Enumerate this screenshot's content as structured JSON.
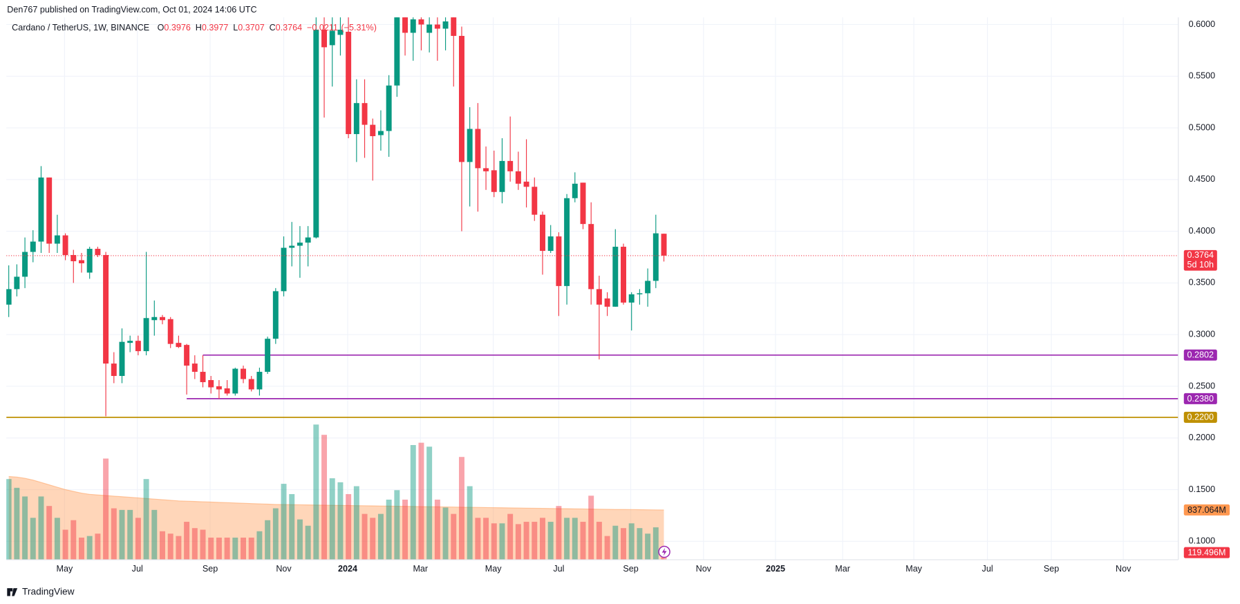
{
  "header": "Den767 published on TradingView.com, Oct 01, 2024 14:06 UTC",
  "footer": "TradingView",
  "chart_data": {
    "type": "candlestick",
    "title": "Cardano / TetherUS, 1W, BINANCE",
    "ohlc_letters": [
      "O",
      "H",
      "L",
      "C"
    ],
    "change": {
      "value": -0.0211,
      "label": "−0.0211"
    },
    "change_pct": {
      "value": -5.31,
      "label": "(−5.31%)"
    },
    "x": [
      0,
      1,
      2,
      3,
      4,
      5,
      6,
      7,
      8,
      9,
      10,
      11,
      12,
      13,
      14,
      15,
      16,
      17,
      18,
      19,
      20,
      21,
      22,
      23,
      24,
      25,
      26,
      27,
      28,
      29,
      30,
      31,
      32,
      33,
      34,
      35,
      36,
      37,
      38,
      39,
      40,
      41,
      42,
      43,
      44,
      45,
      46,
      47,
      48,
      49,
      50,
      51,
      52,
      53,
      54,
      55,
      56,
      57,
      58,
      59,
      60,
      61,
      62,
      63,
      64,
      65,
      66,
      67,
      68,
      69,
      70,
      71,
      72,
      73,
      74,
      75,
      76,
      77,
      78,
      79,
      80,
      81
    ],
    "open": [
      0.329,
      0.344,
      0.356,
      0.38,
      0.39,
      0.452,
      0.388,
      0.396,
      0.377,
      0.372,
      0.36,
      0.383,
      0.377,
      0.272,
      0.26,
      0.292,
      0.294,
      0.284,
      0.314,
      0.317,
      0.315,
      0.292,
      0.29,
      0.272,
      0.264,
      0.256,
      0.25,
      0.248,
      0.243,
      0.267,
      0.257,
      0.247,
      0.264,
      0.296,
      0.342,
      0.384,
      0.386,
      0.389,
      0.394,
      0.595,
      0.58,
      0.59,
      0.593,
      0.494,
      0.524,
      0.503,
      0.493,
      0.497,
      0.541,
      0.61,
      0.592,
      0.605,
      0.592,
      0.6,
      0.596,
      0.607,
      0.589,
      0.467,
      0.499,
      0.461,
      0.459,
      0.438,
      0.468,
      0.458,
      0.448,
      0.443,
      0.416,
      0.381,
      0.395,
      0.347,
      0.432,
      0.447,
      0.407,
      0.344,
      0.335,
      0.327,
      0.385,
      0.331,
      0.339,
      0.34,
      0.352,
      0.3976
    ],
    "high": [
      0.367,
      0.368,
      0.394,
      0.401,
      0.463,
      0.452,
      0.416,
      0.398,
      0.382,
      0.379,
      0.385,
      0.385,
      0.38,
      0.283,
      0.306,
      0.299,
      0.299,
      0.38,
      0.333,
      0.319,
      0.317,
      0.299,
      0.291,
      0.28,
      0.28,
      0.26,
      0.256,
      0.256,
      0.268,
      0.27,
      0.26,
      0.268,
      0.298,
      0.345,
      0.395,
      0.409,
      0.405,
      0.405,
      0.607,
      0.61,
      0.61,
      0.61,
      0.61,
      0.547,
      0.547,
      0.509,
      0.517,
      0.551,
      0.62,
      0.62,
      0.62,
      0.62,
      0.615,
      0.62,
      0.615,
      0.62,
      0.598,
      0.52,
      0.524,
      0.482,
      0.478,
      0.49,
      0.511,
      0.477,
      0.489,
      0.452,
      0.419,
      0.406,
      0.399,
      0.436,
      0.457,
      0.447,
      0.428,
      0.357,
      0.341,
      0.402,
      0.388,
      0.341,
      0.344,
      0.364,
      0.416,
      0.3977
    ],
    "low": [
      0.317,
      0.337,
      0.345,
      0.37,
      0.379,
      0.379,
      0.379,
      0.372,
      0.35,
      0.36,
      0.354,
      0.375,
      0.221,
      0.253,
      0.253,
      0.283,
      0.28,
      0.28,
      0.299,
      0.31,
      0.287,
      0.287,
      0.242,
      0.257,
      0.249,
      0.243,
      0.238,
      0.241,
      0.241,
      0.253,
      0.245,
      0.241,
      0.262,
      0.291,
      0.337,
      0.366,
      0.355,
      0.366,
      0.393,
      0.51,
      0.54,
      0.57,
      0.49,
      0.467,
      0.471,
      0.449,
      0.478,
      0.472,
      0.53,
      0.57,
      0.565,
      0.575,
      0.573,
      0.565,
      0.575,
      0.54,
      0.4,
      0.424,
      0.419,
      0.44,
      0.433,
      0.427,
      0.448,
      0.44,
      0.423,
      0.41,
      0.358,
      0.379,
      0.318,
      0.329,
      0.428,
      0.402,
      0.329,
      0.276,
      0.318,
      0.327,
      0.329,
      0.304,
      0.329,
      0.327,
      0.345,
      0.3707
    ],
    "close": [
      0.344,
      0.356,
      0.38,
      0.39,
      0.452,
      0.388,
      0.396,
      0.377,
      0.371,
      0.369,
      0.383,
      0.377,
      0.272,
      0.26,
      0.293,
      0.294,
      0.284,
      0.316,
      0.317,
      0.314,
      0.291,
      0.288,
      0.27,
      0.264,
      0.254,
      0.249,
      0.247,
      0.243,
      0.267,
      0.257,
      0.247,
      0.264,
      0.296,
      0.342,
      0.384,
      0.386,
      0.389,
      0.394,
      0.595,
      0.578,
      0.594,
      0.595,
      0.494,
      0.524,
      0.503,
      0.492,
      0.497,
      0.541,
      0.608,
      0.592,
      0.605,
      0.6,
      0.6,
      0.596,
      0.603,
      0.589,
      0.467,
      0.499,
      0.461,
      0.458,
      0.438,
      0.468,
      0.458,
      0.446,
      0.443,
      0.416,
      0.381,
      0.395,
      0.347,
      0.432,
      0.446,
      0.407,
      0.344,
      0.329,
      0.327,
      0.385,
      0.331,
      0.339,
      0.34,
      0.352,
      0.398,
      0.3764
    ],
    "volume": [
      1357,
      1210,
      1064,
      705,
      1064,
      904,
      705,
      505,
      665,
      372,
      399,
      439,
      1702,
      865,
      838,
      838,
      705,
      1357,
      838,
      479,
      439,
      399,
      638,
      532,
      505,
      372,
      372,
      372,
      372,
      372,
      372,
      479,
      665,
      865,
      1277,
      1104,
      678,
      572,
      2274,
      2101,
      1370,
      1303,
      1104,
      1237,
      771,
      705,
      771,
      1011,
      1170,
      1011,
      1929,
      1968,
      1902,
      1011,
      878,
      771,
      1729,
      1237,
      705,
      705,
      612,
      612,
      771,
      599,
      638,
      638,
      705,
      638,
      904,
      705,
      705,
      638,
      1077,
      638,
      399,
      572,
      532,
      612,
      532,
      439,
      545,
      119.496
    ],
    "volume_ma": [
      1400,
      1390,
      1370,
      1340,
      1300,
      1260,
      1220,
      1180,
      1150,
      1120,
      1100,
      1090,
      1080,
      1070,
      1060,
      1050,
      1040,
      1030,
      1020,
      1010,
      1000,
      990,
      985,
      980,
      975,
      970,
      965,
      960,
      955,
      950,
      945,
      940,
      935,
      930,
      928,
      926,
      924,
      922,
      920,
      918,
      916,
      914,
      912,
      910,
      908,
      906,
      904,
      902,
      900,
      898,
      896,
      894,
      892,
      890,
      888,
      886,
      884,
      882,
      880,
      878,
      876,
      874,
      872,
      870,
      868,
      866,
      864,
      862,
      860,
      858,
      856,
      854,
      852,
      850,
      848,
      846,
      845,
      844,
      842,
      840,
      838,
      837.064
    ],
    "volume_last_label": "119.496M",
    "volume_ma_last_label": "837.064M",
    "last_price_label": "0.3764",
    "countdown": "5d 10h",
    "up_color": "#089981",
    "down_color": "#f23645",
    "volume_ma_color": "#ff9850",
    "levels": [
      {
        "value": 0.2802,
        "label": "0.2802",
        "color": "#9c27b0",
        "from": 24
      },
      {
        "value": 0.238,
        "label": "0.2380",
        "color": "#9c27b0",
        "from": 22
      },
      {
        "value": 0.22,
        "label": "0.2200",
        "color": "#bf9000"
      }
    ],
    "xlim": [
      -0.3,
      144.6
    ],
    "xticks": [
      {
        "value": 6.9,
        "label": "May"
      },
      {
        "value": 15.9,
        "label": "Jul"
      },
      {
        "value": 24.9,
        "label": "Sep"
      },
      {
        "value": 34.0,
        "label": "Nov"
      },
      {
        "value": 41.9,
        "label": "2024"
      },
      {
        "value": 50.9,
        "label": "Mar"
      },
      {
        "value": 59.9,
        "label": "May"
      },
      {
        "value": 68.0,
        "label": "Jul"
      },
      {
        "value": 76.9,
        "label": "Sep"
      },
      {
        "value": 85.9,
        "label": "Nov"
      },
      {
        "value": 94.8,
        "label": "2025"
      },
      {
        "value": 103.1,
        "label": "Mar"
      },
      {
        "value": 111.9,
        "label": "May"
      },
      {
        "value": 121.0,
        "label": "Jul"
      },
      {
        "value": 128.9,
        "label": "Sep"
      },
      {
        "value": 137.8,
        "label": "Nov"
      }
    ],
    "ylim": [
      0.0822,
      0.6069
    ],
    "yticks": [
      {
        "value": 0.1,
        "label": "0.1000"
      },
      {
        "value": 0.15,
        "label": "0.1500"
      },
      {
        "value": 0.2,
        "label": "0.2000"
      },
      {
        "value": 0.25,
        "label": "0.2500"
      },
      {
        "value": 0.3,
        "label": "0.3000"
      },
      {
        "value": 0.35,
        "label": "0.3500"
      },
      {
        "value": 0.4,
        "label": "0.4000"
      },
      {
        "value": 0.45,
        "label": "0.4500"
      },
      {
        "value": 0.5,
        "label": "0.5000"
      },
      {
        "value": 0.55,
        "label": "0.5500"
      },
      {
        "value": 0.6,
        "label": "0.6000"
      }
    ],
    "grid": true
  }
}
